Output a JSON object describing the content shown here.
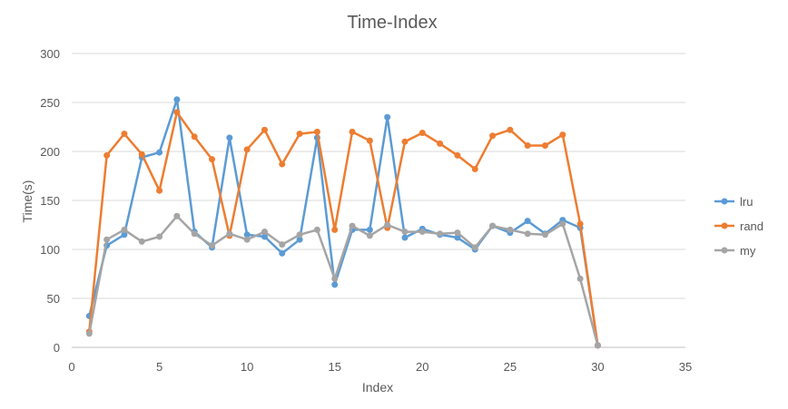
{
  "chart_data": {
    "type": "line",
    "title": "Time-Index",
    "xlabel": "Index",
    "ylabel": "Time(s)",
    "xlim": [
      0,
      35
    ],
    "ylim": [
      0,
      300
    ],
    "xticks": [
      "0",
      "5",
      "10",
      "15",
      "20",
      "25",
      "30",
      "35"
    ],
    "yticks": [
      "0",
      "50",
      "100",
      "150",
      "200",
      "250",
      "300"
    ],
    "grid": "horizontal",
    "legend_position": "right",
    "x": [
      1,
      2,
      3,
      4,
      5,
      6,
      7,
      8,
      9,
      10,
      11,
      12,
      13,
      14,
      15,
      16,
      17,
      18,
      19,
      20,
      21,
      22,
      23,
      24,
      25,
      26,
      27,
      28,
      29,
      30
    ],
    "series": [
      {
        "name": "lru",
        "color": "#5B9BD5",
        "values": [
          32,
          104,
          115,
          194,
          199,
          253,
          118,
          102,
          214,
          115,
          113,
          96,
          110,
          214,
          64,
          120,
          120,
          235,
          112,
          121,
          115,
          112,
          100,
          124,
          117,
          129,
          116,
          130,
          122,
          2
        ]
      },
      {
        "name": "rand",
        "color": "#ED7D31",
        "values": [
          16,
          196,
          218,
          197,
          160,
          240,
          215,
          192,
          114,
          202,
          222,
          187,
          218,
          220,
          120,
          220,
          211,
          122,
          210,
          219,
          208,
          196,
          182,
          216,
          222,
          206,
          206,
          217,
          126,
          2
        ]
      },
      {
        "name": "my",
        "color": "#A5A5A5",
        "values": [
          14,
          110,
          120,
          108,
          113,
          134,
          116,
          104,
          116,
          110,
          118,
          105,
          115,
          120,
          70,
          124,
          114,
          125,
          118,
          118,
          116,
          117,
          102,
          124,
          120,
          116,
          115,
          126,
          70,
          2
        ]
      }
    ]
  }
}
